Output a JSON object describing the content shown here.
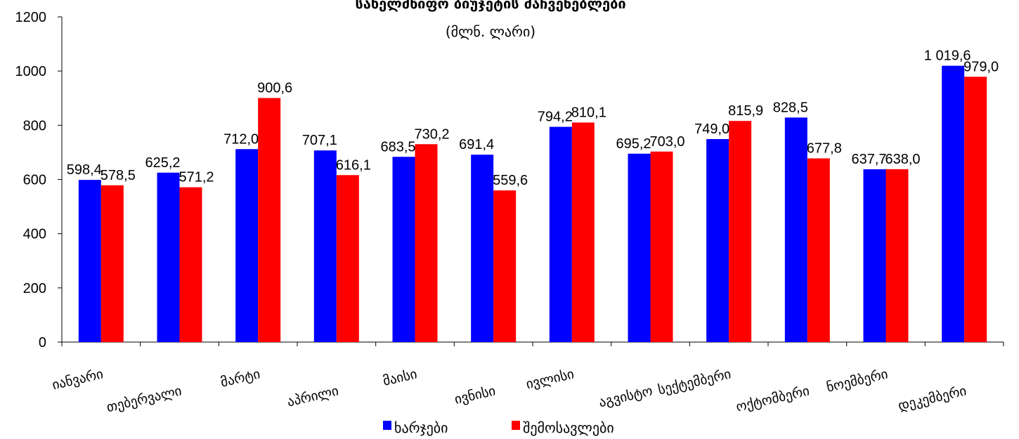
{
  "chart_data": {
    "type": "bar",
    "title": "სახელმწიფო ბიუჯეტის მაჩვენებლები",
    "subtitle": "(მლნ. ლარი)",
    "categories": [
      "იანვარი",
      "თებერვალი",
      "მარტი",
      "აპრილი",
      "მაისი",
      "ივნისი",
      "ივლისი",
      "აგვისტო",
      "სექტემბერი",
      "ოქტომბერი",
      "ნოემბერი",
      "დეკემბერი"
    ],
    "series": [
      {
        "name": "ხარჯები",
        "color": "#0000FF",
        "values": [
          598.4,
          625.2,
          712.0,
          707.1,
          683.5,
          691.4,
          794.2,
          695.2,
          749.0,
          828.5,
          637.7,
          1019.6
        ],
        "labels": [
          "598,4",
          "625,2",
          "712,0",
          "707,1",
          "683,5",
          "691,4",
          "794,2",
          "695,2",
          "749,0",
          "828,5",
          "637,7",
          "1 019,6"
        ]
      },
      {
        "name": "შემოსავლები",
        "color": "#FF0000",
        "values": [
          578.5,
          571.2,
          900.6,
          616.1,
          730.2,
          559.6,
          810.1,
          703.0,
          815.9,
          677.8,
          638.0,
          979.0
        ],
        "labels": [
          "578,5",
          "571,2",
          "900,6",
          "616,1",
          "730,2",
          "559,6",
          "810,1",
          "703,0",
          "815,9",
          "677,8",
          "638,0",
          "979,0"
        ]
      }
    ],
    "ylim": [
      0,
      1200
    ],
    "yticks": [
      "0",
      "200",
      "400",
      "600",
      "800",
      "1000",
      "1200"
    ],
    "grid": false,
    "legend": "bottom-center"
  }
}
